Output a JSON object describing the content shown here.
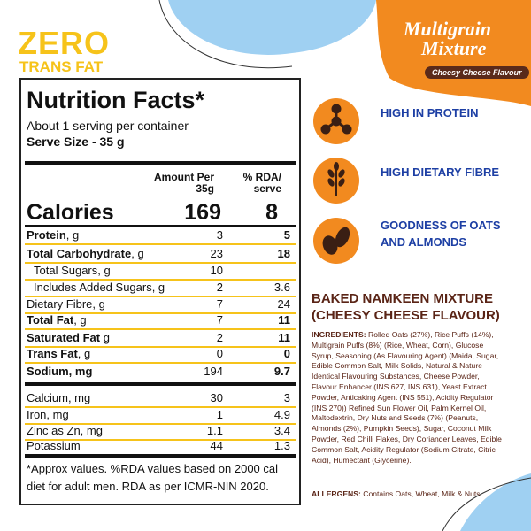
{
  "badge": {
    "title": "ZERO",
    "subtitle": "TRANS FAT"
  },
  "brand": {
    "line1": "Multigrain",
    "line2": "Mixture",
    "flavour": "Cheesy Cheese Flavour"
  },
  "nutrition": {
    "title": "Nutrition Facts*",
    "servings": "About 1 serving per container",
    "serve_size": "Serve Size - 35 g",
    "header_amount": "Amount Per 35g",
    "header_rda": "% RDA/ serve",
    "rows": [
      {
        "label": "Calories",
        "amount": 169,
        "rda": 8,
        "bold": true
      },
      {
        "label": "Protein",
        "unit": ", g",
        "amount": 3,
        "rda": 5,
        "bold": true
      },
      {
        "label": "Total Carbohydrate",
        "unit": ", g",
        "amount": 23,
        "rda": 18,
        "bold": true
      },
      {
        "label": "Total Sugars, g",
        "amount": 10,
        "indent": true
      },
      {
        "label": "Includes Added Sugars, g",
        "amount": 2,
        "rda": 3.6,
        "indent": true
      },
      {
        "label": "Dietary Fibre, g",
        "amount": 7,
        "rda": 24
      },
      {
        "label": "Total Fat",
        "unit": ", g",
        "amount": 7,
        "rda": 11,
        "bold": true
      },
      {
        "label": "Saturated Fat",
        "unit": " g",
        "amount": 2,
        "rda": 11,
        "bold": true
      },
      {
        "label": "Trans Fat",
        "unit": ", g",
        "amount": 0,
        "rda": 0,
        "bold": true
      },
      {
        "label": "Sodium, mg",
        "amount": 194,
        "rda": 9.7,
        "bold": true
      },
      {
        "label": "Calcium, mg",
        "amount": 30,
        "rda": 3
      },
      {
        "label": "Iron, mg",
        "amount": 1,
        "rda": 4.9
      },
      {
        "label": "Zinc as Zn, mg",
        "amount": 1.1,
        "rda": 3.4
      },
      {
        "label": "Potassium",
        "amount": 44,
        "rda": 1.3
      }
    ],
    "footnote": "*Approx values. %RDA values based on 2000 cal diet for adult men. RDA as per ICMR-NIN 2020."
  },
  "features": [
    "HIGH IN PROTEIN",
    "HIGH DIETARY FIBRE",
    "GOODNESS OF OATS AND ALMONDS"
  ],
  "product_name": "BAKED NAMKEEN MIXTURE (CHEESY CHEESE FLAVOUR)",
  "ingredients": {
    "label": "INGREDIENTS:",
    "text": "Rolled Oats (27%), Rice Puffs (14%), Multigrain Puffs (8%) (Rice, Wheat, Corn), Glucose Syrup, Seasoning (As Flavouring Agent) (Maida, Sugar, Edible Common Salt, Milk Solids, Natural & Nature Identical Flavouring Substances, Cheese Powder, Flavour Enhancer (INS 627, INS 631), Yeast Extract Powder, Anticaking Agent (INS 551), Acidity Regulator (INS 270)) Refined Sun Flower Oil, Palm Kernel Oil, Maltodextrin, Dry Nuts and Seeds (7%) (Peanuts, Almonds (2%), Pumpkin Seeds), Sugar, Coconut Milk Powder, Red Chilli Flakes, Dry Coriander Leaves, Edible Common Salt, Acidity Regulator (Sodium Citrate, Citric Acid), Humectant (Glycerine)."
  },
  "allergens": {
    "label": "ALLERGENS:",
    "text": "Contains Oats, Wheat, Milk & Nuts."
  }
}
